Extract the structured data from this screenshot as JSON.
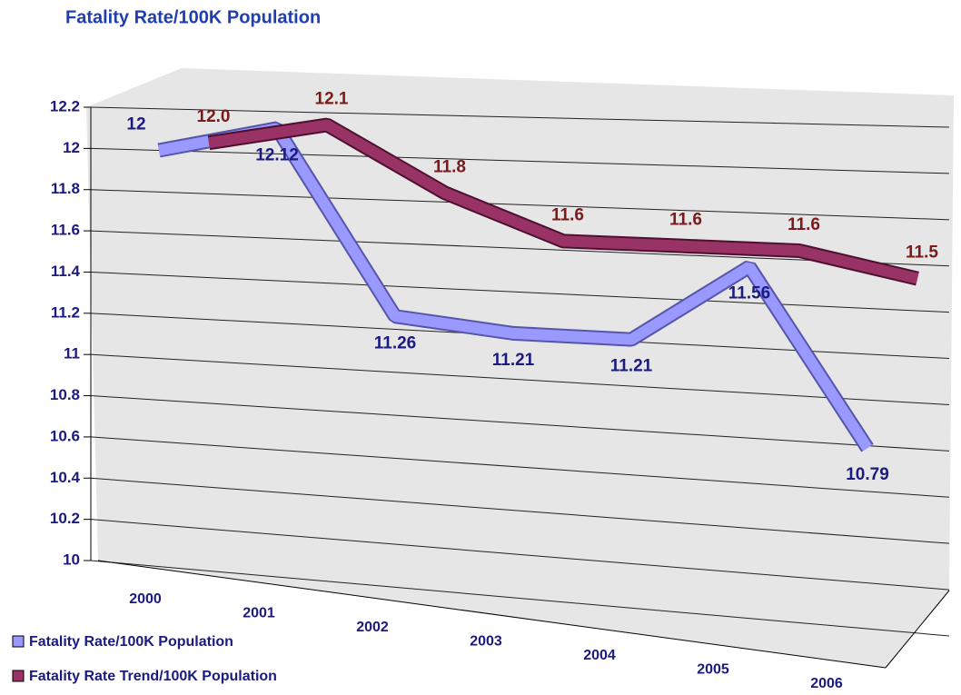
{
  "chart_data": {
    "type": "line3d",
    "title": "Fatality Rate/100K Population",
    "categories": [
      "2000",
      "2001",
      "2002",
      "2003",
      "2004",
      "2005",
      "2006"
    ],
    "series": [
      {
        "name": "Fatality Rate/100K Population",
        "color": "#9999ff",
        "values": [
          12,
          12.12,
          11.26,
          11.21,
          11.21,
          11.56,
          10.79
        ]
      },
      {
        "name": "Fatality Rate Trend/100K Population",
        "color": "#993366",
        "values": [
          12.0,
          12.1,
          11.8,
          11.6,
          11.6,
          11.6,
          11.5
        ],
        "value_labels": [
          "12.0",
          "12.1",
          "11.8",
          "11.6",
          "11.6",
          "11.6",
          "11.5"
        ]
      }
    ],
    "ylim": [
      10,
      12.2
    ],
    "yticks": [
      10,
      10.2,
      10.4,
      10.6,
      10.8,
      11,
      11.2,
      11.4,
      11.6,
      11.8,
      12,
      12.2
    ],
    "grid": true,
    "legend": "bottom-left"
  }
}
